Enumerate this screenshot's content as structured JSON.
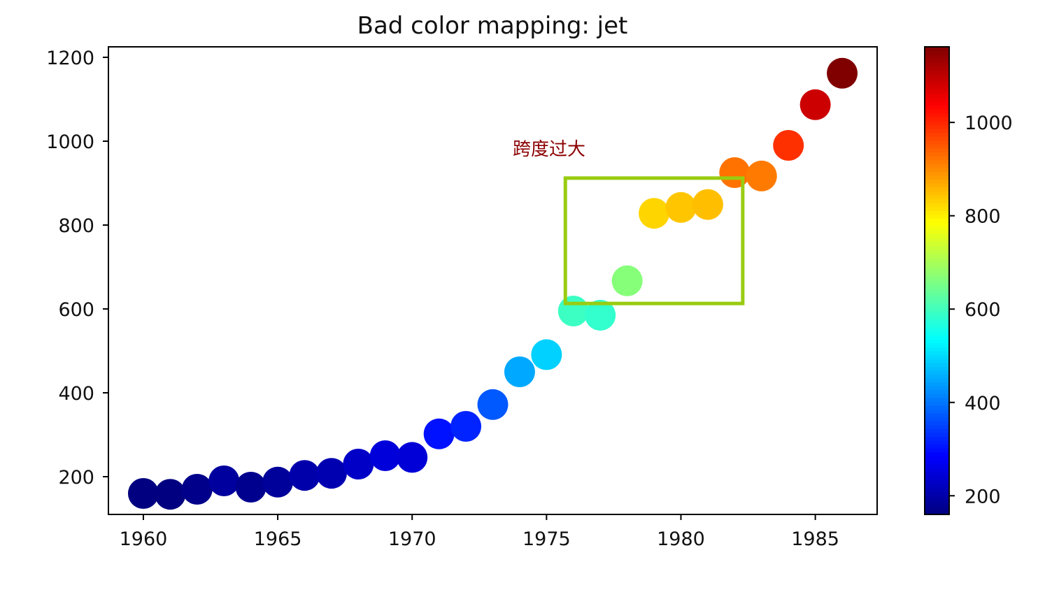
{
  "chart_data": {
    "type": "scatter",
    "title": "Bad color mapping: jet",
    "xlabel": "",
    "ylabel": "",
    "xlim": [
      1958.7,
      1987.3
    ],
    "ylim": [
      110,
      1225
    ],
    "xticks": [
      1960,
      1965,
      1970,
      1975,
      1980,
      1985
    ],
    "yticks": [
      200,
      400,
      600,
      800,
      1000,
      1200
    ],
    "grid": false,
    "colormap": "jet",
    "color_range": [
      160,
      1162
    ],
    "colorbar_ticks": [
      200,
      400,
      600,
      800,
      1000
    ],
    "points": [
      {
        "x": 1960,
        "y": 160
      },
      {
        "x": 1961,
        "y": 158
      },
      {
        "x": 1962,
        "y": 170
      },
      {
        "x": 1963,
        "y": 190
      },
      {
        "x": 1964,
        "y": 175
      },
      {
        "x": 1965,
        "y": 187
      },
      {
        "x": 1966,
        "y": 203
      },
      {
        "x": 1967,
        "y": 208
      },
      {
        "x": 1968,
        "y": 230
      },
      {
        "x": 1969,
        "y": 250
      },
      {
        "x": 1970,
        "y": 246
      },
      {
        "x": 1971,
        "y": 302
      },
      {
        "x": 1972,
        "y": 320
      },
      {
        "x": 1973,
        "y": 372
      },
      {
        "x": 1974,
        "y": 450
      },
      {
        "x": 1975,
        "y": 491
      },
      {
        "x": 1976,
        "y": 595
      },
      {
        "x": 1977,
        "y": 585
      },
      {
        "x": 1978,
        "y": 667
      },
      {
        "x": 1979,
        "y": 828
      },
      {
        "x": 1980,
        "y": 842
      },
      {
        "x": 1981,
        "y": 849
      },
      {
        "x": 1982,
        "y": 925
      },
      {
        "x": 1983,
        "y": 917
      },
      {
        "x": 1984,
        "y": 990
      },
      {
        "x": 1985,
        "y": 1087
      },
      {
        "x": 1986,
        "y": 1162
      }
    ],
    "annotation": {
      "text": "跨度过大",
      "color": "#8b0000",
      "box": {
        "x0": 1975.7,
        "x1": 1982.3,
        "y0": 613,
        "y1": 912
      },
      "box_color": "#99cc11"
    }
  }
}
